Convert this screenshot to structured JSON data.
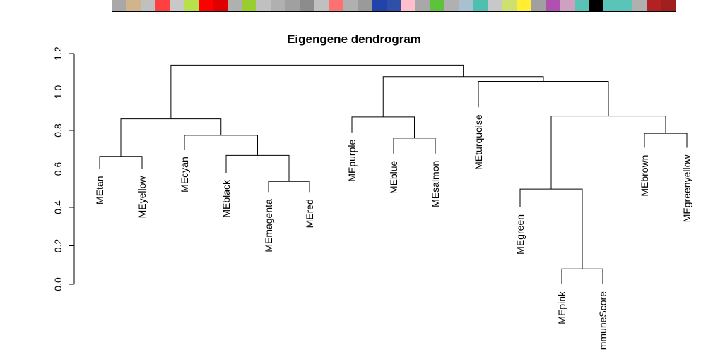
{
  "chart_data": {
    "type": "dendrogram",
    "title": "Eigengene dendrogram",
    "ylim": [
      0,
      1.2
    ],
    "yticks": [
      "0.0",
      "0.2",
      "0.4",
      "0.6",
      "0.8",
      "1.0",
      "1.2"
    ],
    "leaves": [
      {
        "name": "MEtan",
        "height": 0.6
      },
      {
        "name": "MEyellow",
        "height": 0.6
      },
      {
        "name": "MEcyan",
        "height": 0.7
      },
      {
        "name": "MEblack",
        "height": 0.58
      },
      {
        "name": "MEmagenta",
        "height": 0.48
      },
      {
        "name": "MEred",
        "height": 0.48
      },
      {
        "name": "MEpurple",
        "height": 0.79
      },
      {
        "name": "MEblue",
        "height": 0.68
      },
      {
        "name": "MEsalmon",
        "height": 0.68
      },
      {
        "name": "MEturquoise",
        "height": 0.92
      },
      {
        "name": "MEgreen",
        "height": 0.4
      },
      {
        "name": "MEpink",
        "height": 0.0
      },
      {
        "name": "mmuneScore",
        "height": 0.0
      },
      {
        "name": "MEbrown",
        "height": 0.71
      },
      {
        "name": "MEgreenyellow",
        "height": 0.71
      }
    ],
    "merges": [
      {
        "left": {
          "leaf": 0
        },
        "right": {
          "leaf": 1
        },
        "height": 0.665
      },
      {
        "left": {
          "leaf": 4
        },
        "right": {
          "leaf": 5
        },
        "height": 0.535
      },
      {
        "left": {
          "leaf": 3
        },
        "right": {
          "merge": 1
        },
        "height": 0.67
      },
      {
        "left": {
          "leaf": 2
        },
        "right": {
          "merge": 2
        },
        "height": 0.775
      },
      {
        "left": {
          "merge": 0
        },
        "right": {
          "merge": 3
        },
        "height": 0.86
      },
      {
        "left": {
          "leaf": 11
        },
        "right": {
          "leaf": 12
        },
        "height": 0.08
      },
      {
        "left": {
          "leaf": 10
        },
        "right": {
          "merge": 5
        },
        "height": 0.495
      },
      {
        "left": {
          "leaf": 13
        },
        "right": {
          "leaf": 14
        },
        "height": 0.785
      },
      {
        "left": {
          "merge": 6
        },
        "right": {
          "merge": 7
        },
        "height": 0.875
      },
      {
        "left": {
          "leaf": 9
        },
        "right": {
          "merge": 8
        },
        "height": 1.055
      },
      {
        "left": {
          "leaf": 7
        },
        "right": {
          "leaf": 8
        },
        "height": 0.76
      },
      {
        "left": {
          "leaf": 6
        },
        "right": {
          "merge": 10
        },
        "height": 0.87
      },
      {
        "left": {
          "merge": 11
        },
        "right": {
          "merge": 9
        },
        "height": 1.08
      },
      {
        "left": {
          "merge": 4
        },
        "right": {
          "merge": 12
        },
        "height": 1.14
      }
    ]
  },
  "color_strip": [
    "#a8a8a8",
    "#d2b48c",
    "#c0c0c0",
    "#ff4040",
    "#c8c8c8",
    "#b8e04a",
    "#ff0000",
    "#e00000",
    "#b0b0b0",
    "#9acd32",
    "#c0c0c0",
    "#b0b0b0",
    "#a0a0a0",
    "#8c8c8c",
    "#c0c0c0",
    "#ff7070",
    "#b0b0b0",
    "#9a9a9a",
    "#2244aa",
    "#2f4fa8",
    "#ffc0cb",
    "#a8a8a8",
    "#5ec23c",
    "#b0b0b0",
    "#a8c0d0",
    "#4fbfb0",
    "#c8c8c8",
    "#d0e070",
    "#ffee33",
    "#a0a0a0",
    "#b050b0",
    "#d0a0c0",
    "#5ac3b5",
    "#000000",
    "#5bc4b9",
    "#5bc4b9",
    "#b0b0b0",
    "#b22222",
    "#a02020"
  ]
}
